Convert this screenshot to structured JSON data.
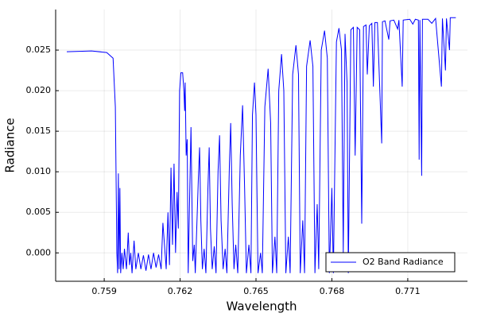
{
  "chart_data": {
    "type": "line",
    "xlabel": "Wavelength",
    "ylabel": "Radiance",
    "x": [
      0.75752,
      0.7585,
      0.7591,
      0.75935,
      0.75944,
      0.7595,
      0.75953,
      0.75956,
      0.75959,
      0.75962,
      0.75965,
      0.7597,
      0.75975,
      0.7598,
      0.75988,
      0.75995,
      0.76,
      0.76005,
      0.7601,
      0.76018,
      0.76025,
      0.76035,
      0.76045,
      0.76055,
      0.76065,
      0.76075,
      0.76085,
      0.76095,
      0.76105,
      0.76115,
      0.76125,
      0.76132,
      0.76145,
      0.76152,
      0.76158,
      0.76164,
      0.7617,
      0.76176,
      0.76182,
      0.76188,
      0.76193,
      0.76198,
      0.76203,
      0.7621,
      0.76215,
      0.76218,
      0.7622,
      0.76224,
      0.76228,
      0.76232,
      0.76243,
      0.76246,
      0.7625,
      0.76256,
      0.7626,
      0.76272,
      0.76277,
      0.76282,
      0.76288,
      0.76295,
      0.76302,
      0.7631,
      0.76315,
      0.7632,
      0.76327,
      0.76335,
      0.76342,
      0.7635,
      0.76356,
      0.76362,
      0.7637,
      0.76378,
      0.76385,
      0.76395,
      0.764,
      0.76406,
      0.76413,
      0.7642,
      0.76428,
      0.76438,
      0.76447,
      0.76455,
      0.76462,
      0.76472,
      0.7648,
      0.76486,
      0.76494,
      0.765,
      0.76508,
      0.76518,
      0.76525,
      0.76535,
      0.76548,
      0.76558,
      0.76565,
      0.76575,
      0.76582,
      0.7659,
      0.76601,
      0.7661,
      0.76618,
      0.76628,
      0.76635,
      0.76645,
      0.76658,
      0.76668,
      0.76675,
      0.76685,
      0.76692,
      0.767,
      0.76714,
      0.76725,
      0.76733,
      0.76742,
      0.76748,
      0.76758,
      0.76771,
      0.76782,
      0.7679,
      0.768,
      0.76806,
      0.76818,
      0.76828,
      0.76838,
      0.76845,
      0.76852,
      0.7686,
      0.76865,
      0.76875,
      0.76885,
      0.76892,
      0.769,
      0.7691,
      0.76918,
      0.76925,
      0.76935,
      0.7694,
      0.76948,
      0.76958,
      0.76964,
      0.7697,
      0.7698,
      0.76997,
      0.77,
      0.7701,
      0.77025,
      0.7703,
      0.77045,
      0.7706,
      0.77065,
      0.77078,
      0.77082,
      0.77108,
      0.7712,
      0.7713,
      0.77142,
      0.77145,
      0.77148,
      0.77155,
      0.77158,
      0.7718,
      0.77195,
      0.7721,
      0.77233,
      0.77237,
      0.77249,
      0.77253,
      0.77265,
      0.77268,
      0.7729
    ],
    "series": [
      {
        "name": "O2 Band Radiance",
        "color": "#0000ff",
        "values": [
          0.0248,
          0.0249,
          0.0247,
          0.024,
          0.018,
          0.0,
          -0.0025,
          0.0098,
          -0.002,
          0.008,
          -0.0025,
          0.0,
          -0.002,
          0.0005,
          -0.002,
          0.0025,
          -0.0015,
          0.0,
          -0.0025,
          0.0015,
          -0.002,
          0.0,
          -0.002,
          -0.0003,
          -0.0022,
          -0.0002,
          -0.002,
          0.0,
          -0.0018,
          -0.0002,
          -0.002,
          0.0037,
          -0.002,
          0.005,
          -0.0015,
          0.0105,
          0.001,
          0.011,
          0.0,
          0.0075,
          0.003,
          0.02,
          0.0222,
          0.0222,
          0.02,
          0.0175,
          0.021,
          0.012,
          0.014,
          -0.0025,
          0.0155,
          0.0085,
          -0.001,
          0.001,
          -0.0025,
          0.009,
          0.013,
          0.004,
          -0.002,
          0.0005,
          -0.0025,
          0.008,
          0.013,
          0.003,
          -0.002,
          0.0008,
          -0.0025,
          0.01,
          0.0145,
          0.004,
          -0.002,
          0.0005,
          -0.0025,
          0.011,
          0.016,
          0.006,
          -0.002,
          0.001,
          -0.0025,
          0.012,
          0.0182,
          0.008,
          -0.0025,
          0.001,
          -0.0025,
          0.017,
          0.021,
          0.017,
          -0.0025,
          0.0,
          -0.0025,
          0.018,
          0.0227,
          0.016,
          -0.0025,
          0.002,
          -0.0025,
          0.02,
          0.0245,
          0.02,
          -0.0025,
          0.002,
          -0.0025,
          0.022,
          0.0256,
          0.022,
          -0.0025,
          0.004,
          -0.0025,
          0.023,
          0.0262,
          0.023,
          -0.0025,
          0.006,
          -0.002,
          0.025,
          0.0274,
          0.024,
          -0.0025,
          0.008,
          -0.0025,
          0.026,
          0.0277,
          0.025,
          0.0,
          0.027,
          0.021,
          -0.0025,
          0.0275,
          0.0278,
          0.012,
          0.0278,
          0.0275,
          0.0036,
          0.0279,
          0.0281,
          0.022,
          0.028,
          0.0283,
          0.0205,
          0.0284,
          0.0284,
          0.0135,
          0.0285,
          0.0286,
          0.0263,
          0.0286,
          0.0287,
          0.0276,
          0.0287,
          0.0205,
          0.0287,
          0.0288,
          0.0282,
          0.0288,
          0.0287,
          0.0115,
          0.0287,
          0.0095,
          0.0288,
          0.0288,
          0.0283,
          0.0289,
          0.0205,
          0.0289,
          0.0225,
          0.0289,
          0.025,
          0.029,
          0.029
        ]
      }
    ],
    "xlim": [
      0.75708,
      0.77336
    ],
    "xticks": [
      0.759,
      0.762,
      0.765,
      0.768,
      0.771
    ],
    "ylim": [
      -0.0035,
      0.03
    ],
    "yticks": [
      {
        "value": 0,
        "label": "0.000"
      },
      0.005,
      {
        "value": 0.01,
        "label": "0.010"
      },
      0.015,
      {
        "value": 0.02,
        "label": "0.020"
      },
      0.025
    ],
    "grid": true,
    "legend": "lower right"
  }
}
